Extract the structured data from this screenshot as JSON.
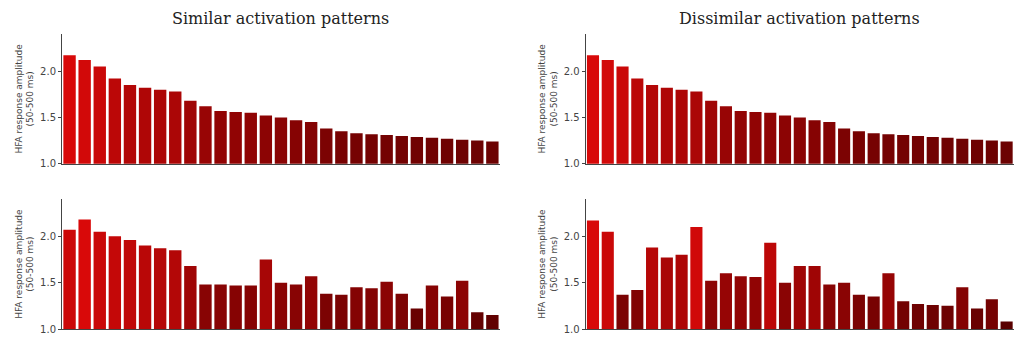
{
  "chart_data": [
    {
      "type": "bar",
      "title": "Similar activation patterns",
      "ylabel": "HFA response amplitude (50-500 ms)",
      "categories": [
        null,
        null,
        null,
        null,
        null,
        null,
        null,
        null,
        null,
        null,
        null,
        null,
        null,
        null,
        null,
        null,
        null,
        null,
        null,
        null,
        null,
        null,
        null,
        null,
        null,
        null,
        null,
        null,
        null
      ],
      "values": [
        2.17,
        2.12,
        2.05,
        1.92,
        1.85,
        1.82,
        1.8,
        1.78,
        1.68,
        1.62,
        1.57,
        1.56,
        1.55,
        1.52,
        1.5,
        1.47,
        1.45,
        1.38,
        1.35,
        1.33,
        1.32,
        1.31,
        1.3,
        1.29,
        1.28,
        1.27,
        1.26,
        1.25,
        1.24
      ],
      "colors": [
        "#d80909",
        "#d20909",
        "#ca0808",
        "#bb0707",
        "#b30707",
        "#af0606",
        "#ad0606",
        "#ab0606",
        "#9f0505",
        "#980505",
        "#920404",
        "#910404",
        "#900404",
        "#8c0404",
        "#8a0404",
        "#860303",
        "#840303",
        "#7c0303",
        "#780202",
        "#760202",
        "#750202",
        "#740202",
        "#730202",
        "#710202",
        "#700202",
        "#6f0202",
        "#6e0202",
        "#6d0202",
        "#6c0202"
      ],
      "ylim": [
        1.0,
        2.4
      ],
      "yticks": [
        {
          "value": 1.0,
          "label": "1.0"
        },
        1.5,
        {
          "value": 2.0,
          "label": "2.0"
        }
      ],
      "grid": false,
      "tick_labels": "y"
    },
    {
      "type": "bar",
      "ylabel": "HFA response amplitude (50-500 ms)",
      "categories": [
        null,
        null,
        null,
        null,
        null,
        null,
        null,
        null,
        null,
        null,
        null,
        null,
        null,
        null,
        null,
        null,
        null,
        null,
        null,
        null,
        null,
        null,
        null,
        null,
        null,
        null,
        null,
        null,
        null
      ],
      "values": [
        2.07,
        2.18,
        2.05,
        2.0,
        1.96,
        1.9,
        1.87,
        1.85,
        1.68,
        1.48,
        1.48,
        1.47,
        1.47,
        1.75,
        1.5,
        1.48,
        1.57,
        1.38,
        1.37,
        1.45,
        1.44,
        1.51,
        1.38,
        1.22,
        1.47,
        1.35,
        1.52,
        1.18,
        1.15
      ],
      "colors": [
        "#cc0808",
        "#d90909",
        "#ca0808",
        "#c40808",
        "#c00808",
        "#b90707",
        "#b50707",
        "#b30707",
        "#9f0505",
        "#880404",
        "#880404",
        "#860303",
        "#860303",
        "#a70606",
        "#8a0404",
        "#880404",
        "#920404",
        "#7c0303",
        "#7b0303",
        "#840303",
        "#830303",
        "#8b0404",
        "#7c0303",
        "#690101",
        "#860303",
        "#780202",
        "#8c0404",
        "#650101",
        "#610101"
      ],
      "ylim": [
        1.0,
        2.4
      ],
      "yticks": [
        {
          "value": 1.0,
          "label": "1.0"
        },
        1.5,
        {
          "value": 2.0,
          "label": "2.0"
        }
      ],
      "grid": false,
      "tick_labels": "y"
    },
    {
      "type": "bar",
      "title": "Dissimilar activation patterns",
      "ylabel": "HFA response amplitude (50-500 ms)",
      "categories": [
        null,
        null,
        null,
        null,
        null,
        null,
        null,
        null,
        null,
        null,
        null,
        null,
        null,
        null,
        null,
        null,
        null,
        null,
        null,
        null,
        null,
        null,
        null,
        null,
        null,
        null,
        null,
        null,
        null
      ],
      "values": [
        2.17,
        2.12,
        2.05,
        1.92,
        1.85,
        1.82,
        1.8,
        1.78,
        1.68,
        1.62,
        1.57,
        1.56,
        1.55,
        1.52,
        1.5,
        1.47,
        1.45,
        1.38,
        1.35,
        1.33,
        1.32,
        1.31,
        1.3,
        1.29,
        1.28,
        1.27,
        1.26,
        1.25,
        1.24
      ],
      "colors": [
        "#d80909",
        "#d20909",
        "#ca0808",
        "#bb0707",
        "#b30707",
        "#af0606",
        "#ad0606",
        "#ab0606",
        "#9f0505",
        "#980505",
        "#920404",
        "#910404",
        "#900404",
        "#8c0404",
        "#8a0404",
        "#860303",
        "#840303",
        "#7c0303",
        "#780202",
        "#760202",
        "#750202",
        "#740202",
        "#730202",
        "#710202",
        "#700202",
        "#6f0202",
        "#6e0202",
        "#6d0202",
        "#6c0202"
      ],
      "ylim": [
        1.0,
        2.4
      ],
      "yticks": [
        {
          "value": 1.0,
          "label": "1.0"
        },
        1.5,
        {
          "value": 2.0,
          "label": "2.0"
        }
      ],
      "grid": false,
      "tick_labels": "y"
    },
    {
      "type": "bar",
      "ylabel": "HFA response amplitude (50-500 ms)",
      "categories": [
        null,
        null,
        null,
        null,
        null,
        null,
        null,
        null,
        null,
        null,
        null,
        null,
        null,
        null,
        null,
        null,
        null,
        null,
        null,
        null,
        null,
        null,
        null,
        null,
        null,
        null,
        null,
        null,
        null
      ],
      "values": [
        2.17,
        2.05,
        1.37,
        1.42,
        1.88,
        1.77,
        1.8,
        2.1,
        1.52,
        1.6,
        1.57,
        1.56,
        1.93,
        1.5,
        1.68,
        1.68,
        1.48,
        1.5,
        1.37,
        1.35,
        1.6,
        1.3,
        1.27,
        1.26,
        1.25,
        1.45,
        1.22,
        1.32,
        1.08
      ],
      "colors": [
        "#d80909",
        "#ca0808",
        "#7b0303",
        "#810303",
        "#b60707",
        "#a90606",
        "#ad0606",
        "#d00909",
        "#8c0404",
        "#960505",
        "#920404",
        "#910404",
        "#bc0707",
        "#8a0404",
        "#9f0505",
        "#9f0505",
        "#880404",
        "#8a0404",
        "#7b0303",
        "#780202",
        "#960505",
        "#730202",
        "#6f0202",
        "#6e0202",
        "#6d0202",
        "#840303",
        "#690101",
        "#750202",
        "#590000"
      ],
      "ylim": [
        1.0,
        2.4
      ],
      "yticks": [
        {
          "value": 1.0,
          "label": "1.0"
        },
        1.5,
        {
          "value": 2.0,
          "label": "2.0"
        }
      ],
      "grid": false,
      "tick_labels": "y"
    }
  ]
}
